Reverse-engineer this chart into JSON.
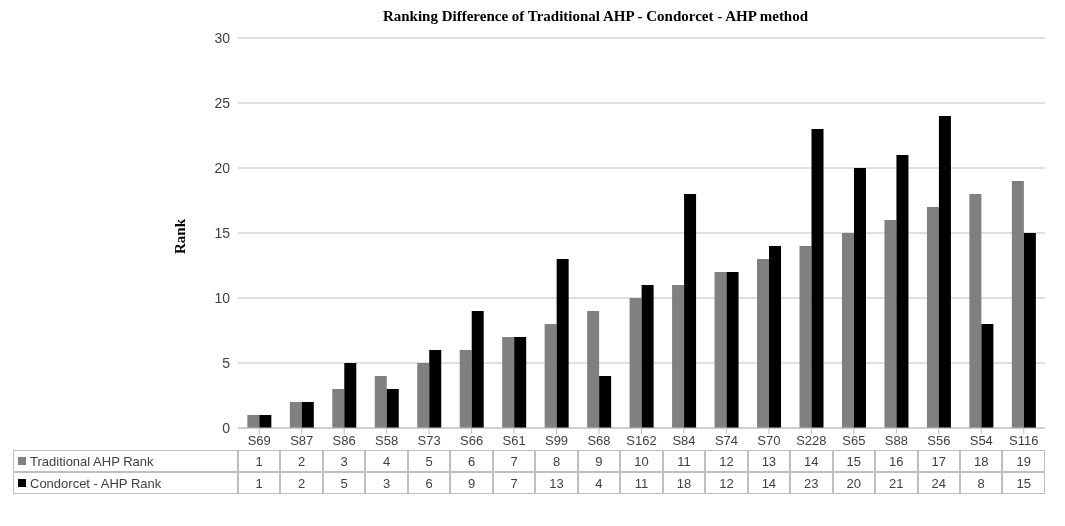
{
  "chart_data": {
    "type": "bar",
    "title": "Ranking  Difference of Traditional AHP - Condorcet - AHP method",
    "ylabel": "Rank",
    "categories": [
      "S69",
      "S87",
      "S86",
      "S58",
      "S73",
      "S66",
      "S61",
      "S99",
      "S68",
      "S162",
      "S84",
      "S74",
      "S70",
      "S228",
      "S65",
      "S88",
      "S56",
      "S54",
      "S116"
    ],
    "series": [
      {
        "name": "Traditional AHP Rank",
        "color": "#808080",
        "values": [
          1,
          2,
          3,
          4,
          5,
          6,
          7,
          8,
          9,
          10,
          11,
          12,
          13,
          14,
          15,
          16,
          17,
          18,
          19
        ]
      },
      {
        "name": "Condorcet - AHP Rank",
        "color": "#000000",
        "values": [
          1,
          2,
          5,
          3,
          6,
          9,
          7,
          13,
          4,
          11,
          18,
          12,
          14,
          23,
          20,
          21,
          24,
          8,
          15
        ]
      }
    ],
    "ylim": [
      0,
      30
    ],
    "yticks": [
      0,
      5,
      10,
      15,
      20,
      25,
      30
    ],
    "grid": "y",
    "legend": "bottom left",
    "data_labels": true
  }
}
